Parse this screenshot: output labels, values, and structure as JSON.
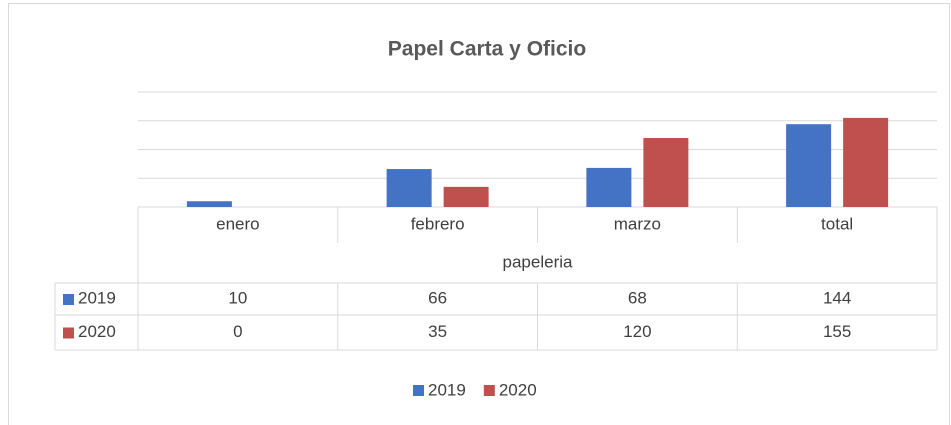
{
  "chart_data": {
    "type": "bar",
    "title": "Papel Carta y Oficio",
    "categories": [
      "enero",
      "febrero",
      "marzo",
      "total"
    ],
    "group_label": "papeleria",
    "series": [
      {
        "name": "2019",
        "color": "#4472c4",
        "values": [
          10,
          66,
          68,
          144
        ]
      },
      {
        "name": "2020",
        "color": "#c0504d",
        "values": [
          0,
          35,
          120,
          155
        ]
      }
    ],
    "ylim": [
      0,
      200
    ],
    "yticks": [
      0,
      50,
      100,
      150,
      200
    ],
    "grid": true,
    "legend": "bottom"
  }
}
